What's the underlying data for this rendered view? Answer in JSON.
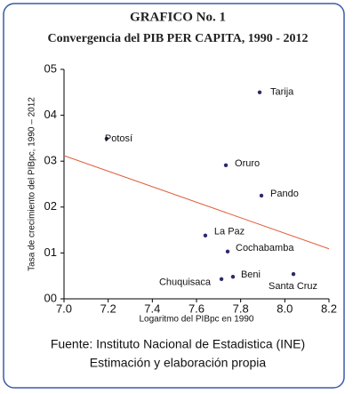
{
  "chart_data": {
    "type": "scatter",
    "title": "GRAFICO No. 1",
    "subtitle": "Convergencia del PIB PER CAPITA, 1990 - 2012",
    "xlabel": "Logaritmo del PIBpc en 1990",
    "ylabel": "Tasa de crecimiento del PIBpc, 1990 – 2012",
    "xlim": [
      7.0,
      8.2
    ],
    "ylim": [
      0,
      0.05
    ],
    "xticks": [
      {
        "value": 7,
        "label": "7.0"
      },
      7.2,
      7.4,
      7.6,
      7.8,
      {
        "value": 8,
        "label": "8.0"
      },
      8.2
    ],
    "yticks": [
      {
        "value": 0,
        "label": "00"
      },
      {
        "value": 0.01,
        "label": "01"
      },
      {
        "value": 0.02,
        "label": "02"
      },
      {
        "value": 0.03,
        "label": "03"
      },
      {
        "value": 0.04,
        "label": "04"
      },
      {
        "value": 0.05,
        "label": "05"
      }
    ],
    "point_labels": [
      "Tarija",
      "Potosí",
      "Oruro",
      "Pando",
      "La Paz",
      "Cochabamba",
      "Beni",
      "Chuquisaca",
      "Santa Cruz"
    ],
    "x": [
      7.886,
      7.193,
      7.733,
      7.894,
      7.64,
      7.741,
      7.765,
      7.713,
      8.039
    ],
    "values": [
      0.045,
      0.0349,
      0.0291,
      0.0225,
      0.0138,
      0.0103,
      0.0048,
      0.0043,
      0.0054
    ],
    "color": "#2b2b6b",
    "trend_line": {
      "x": [
        7.0,
        8.2
      ],
      "y": [
        0.0312,
        0.0109
      ],
      "color": "#e0603c"
    },
    "source": "Fuente: Instituto Nacional de Estadistica (INE)",
    "note": "Estimación y elaboración propia"
  }
}
